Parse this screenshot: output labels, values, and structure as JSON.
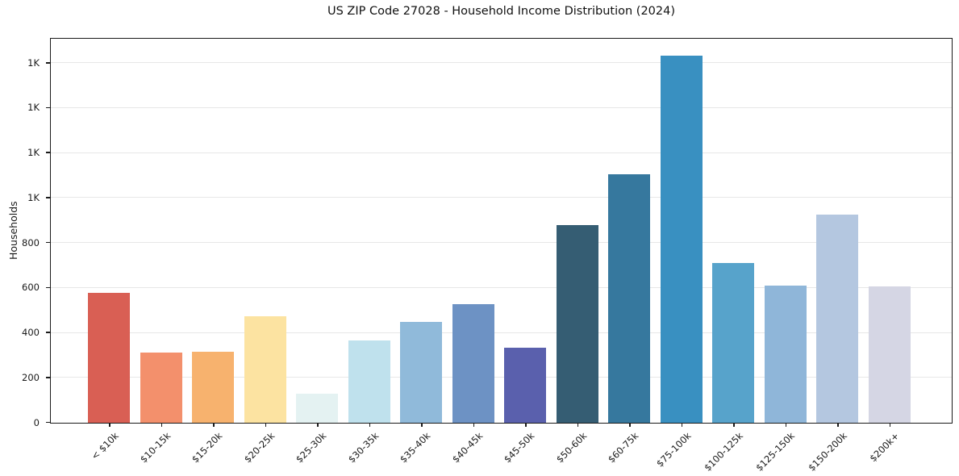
{
  "chart_data": {
    "type": "bar",
    "title": "US ZIP Code 27028 - Household Income Distribution (2024)",
    "xlabel": "",
    "ylabel": "Households",
    "categories": [
      "< $10k",
      "$10-15k",
      "$15-20k",
      "$20-25k",
      "$25-30k",
      "$30-35k",
      "$35-40k",
      "$40-45k",
      "$45-50k",
      "$50-60k",
      "$60-75k",
      "$75-100k",
      "$100-125k",
      "$125-150k",
      "$150-200k",
      "$200k+"
    ],
    "values": [
      578,
      311,
      317,
      474,
      130,
      366,
      447,
      527,
      333,
      879,
      1105,
      1632,
      711,
      612,
      925,
      607
    ],
    "bar_colors": [
      "#d95f54",
      "#f3906c",
      "#f7b26e",
      "#fce3a1",
      "#e4f2f2",
      "#bfe1ed",
      "#90bada",
      "#6d92c4",
      "#5a60ad",
      "#355d73",
      "#36789e",
      "#3990c1",
      "#57a3cb",
      "#8fb6d9",
      "#b4c7e0",
      "#d5d6e4"
    ],
    "ylim": [
      0,
      1705
    ],
    "ytick_interval": 200,
    "ytick_labels": [
      "0",
      "200",
      "400",
      "600",
      "800",
      "1K",
      "1K",
      "1K",
      "1K"
    ],
    "grid": true,
    "legend": false,
    "axis_color": "#1a1a1a",
    "gridline_color": "#e7e7e7",
    "background_color": "#ffffff"
  }
}
